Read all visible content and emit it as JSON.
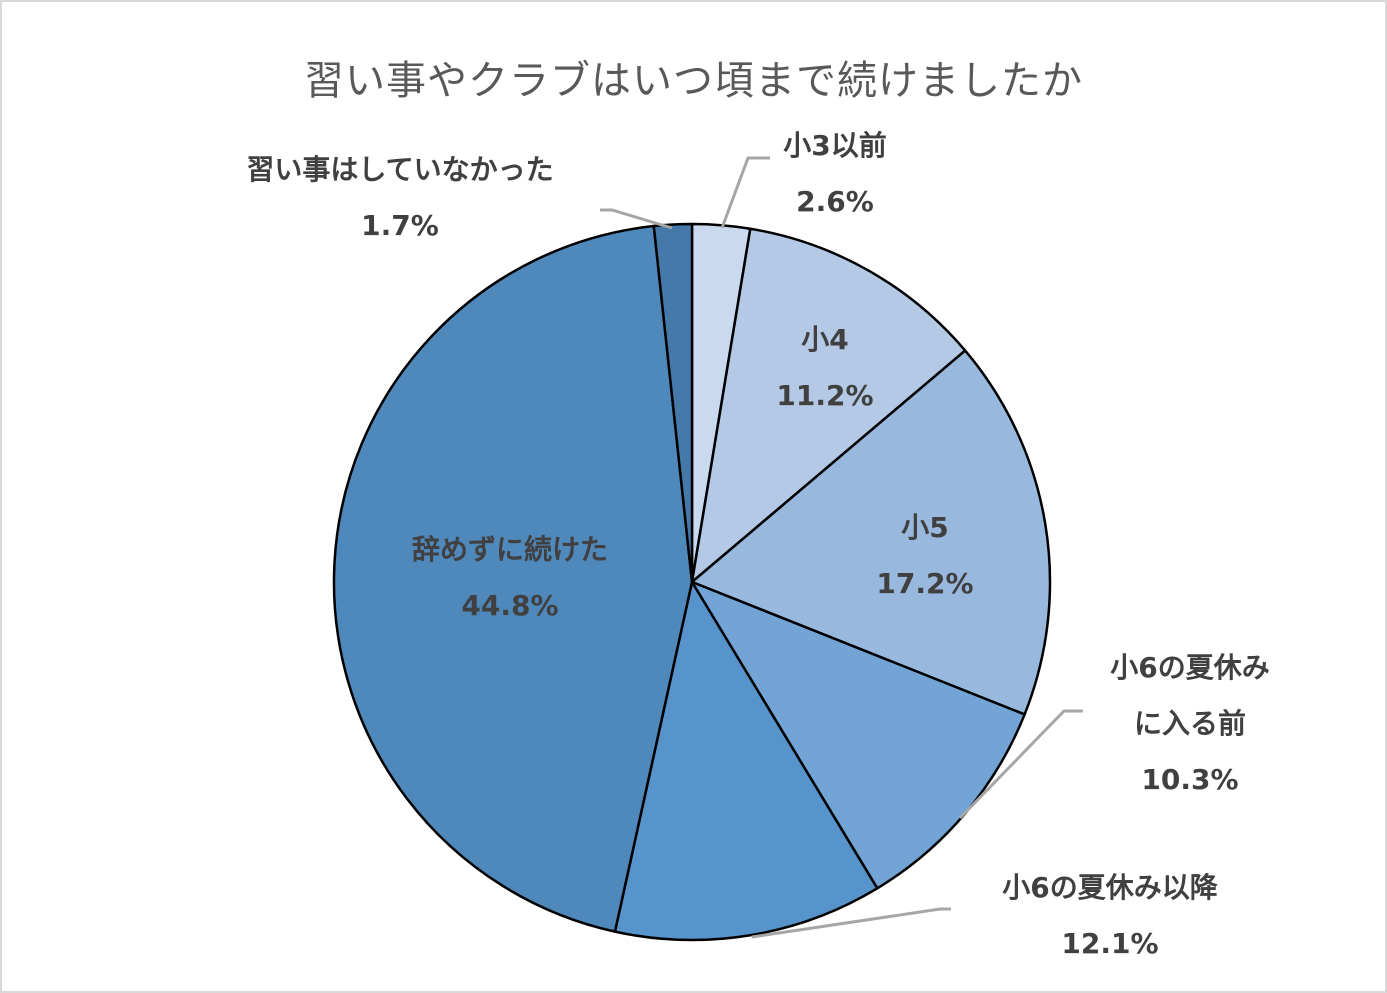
{
  "chart_data": {
    "type": "pie",
    "title": "習い事やクラブはいつ頃まで続けましたか",
    "start_angle_deg": 0,
    "direction": "clockwise",
    "categories": [
      "小3以前",
      "小4",
      "小5",
      "小6の夏休みに入る前",
      "小6の夏休み以降",
      "辞めずに続けた",
      "習い事はしていなかった"
    ],
    "values": [
      2.6,
      11.2,
      17.2,
      10.3,
      12.1,
      44.8,
      1.7
    ],
    "unit": "%",
    "colors": [
      "#c9d9ef",
      "#b4c9e6",
      "#98b8de",
      "#72a4d6",
      "#5794cc",
      "#4f88bb",
      "#4479aa"
    ],
    "data_labels": [
      {
        "name": "小3以前",
        "value": "2.6%"
      },
      {
        "name": "小4",
        "value": "11.2%"
      },
      {
        "name": "小5",
        "value": "17.2%"
      },
      {
        "name_lines": [
          "小6の夏休み",
          "に入る前"
        ],
        "value": "10.3%"
      },
      {
        "name": "小6の夏休み以降",
        "value": "12.1%"
      },
      {
        "name": "辞めずに続けた",
        "value": "44.8%"
      },
      {
        "name": "習い事はしていなかった",
        "value": "1.7%"
      }
    ],
    "legend": "none",
    "leader_lines": true
  }
}
